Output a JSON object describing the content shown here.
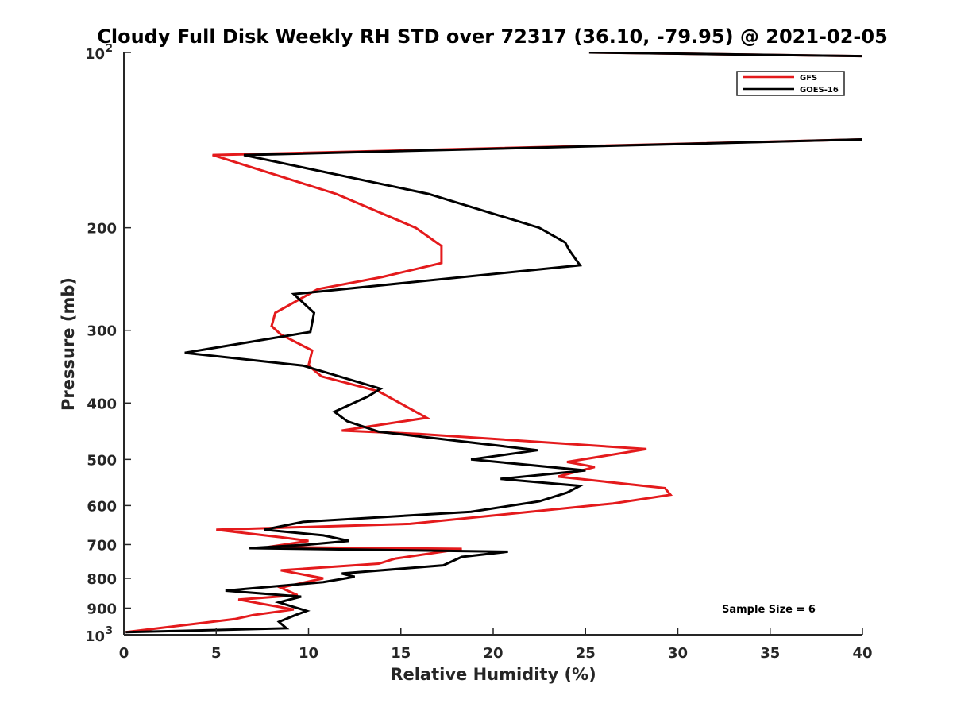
{
  "chart_data": {
    "type": "line",
    "title": "Cloudy Full Disk Weekly RH STD over 72317 (36.10, -79.95) @ 2021-02-05",
    "xlabel": "Relative Humidity (%)",
    "ylabel": "Pressure (mb)",
    "xlim": [
      0,
      40
    ],
    "ylim": [
      100,
      1000
    ],
    "y_scale": "log",
    "y_reversed": true,
    "grid": false,
    "legend_placement": "top-right",
    "xticks": [
      "0",
      "5",
      "10",
      "15",
      "20",
      "25",
      "30",
      "35",
      "40"
    ],
    "yticks": [
      {
        "value": 100,
        "base": "10",
        "exp": "2"
      },
      {
        "value": 200,
        "label": "200"
      },
      {
        "value": 300,
        "label": "300"
      },
      {
        "value": 400,
        "label": "400"
      },
      {
        "value": 500,
        "label": "500"
      },
      {
        "value": 600,
        "label": "600"
      },
      {
        "value": 700,
        "label": "700"
      },
      {
        "value": 800,
        "label": "800"
      },
      {
        "value": 900,
        "label": "900"
      },
      {
        "value": 1000,
        "base": "10",
        "exp": "3"
      }
    ],
    "annotation": "Sample Size = 6",
    "series": [
      {
        "name": "GFS",
        "color": "#e41a1c",
        "points": [
          [
            25.2,
            100
          ],
          [
            40.2,
            101.5
          ],
          [
            40.2,
            141
          ],
          [
            4.8,
            150
          ],
          [
            11.5,
            175
          ],
          [
            15.8,
            200
          ],
          [
            17.2,
            215
          ],
          [
            17.2,
            230
          ],
          [
            14.0,
            243
          ],
          [
            10.5,
            255
          ],
          [
            8.2,
            280
          ],
          [
            8.0,
            295
          ],
          [
            8.5,
            305
          ],
          [
            10.2,
            325
          ],
          [
            10.0,
            345
          ],
          [
            10.7,
            360
          ],
          [
            13.8,
            382
          ],
          [
            16.4,
            424
          ],
          [
            11.8,
            446
          ],
          [
            16.0,
            452
          ],
          [
            28.3,
            480
          ],
          [
            24.0,
            505
          ],
          [
            25.5,
            515
          ],
          [
            23.5,
            535
          ],
          [
            29.3,
            560
          ],
          [
            29.6,
            575
          ],
          [
            26.5,
            595
          ],
          [
            15.5,
            645
          ],
          [
            5.0,
            660
          ],
          [
            8.5,
            680
          ],
          [
            10.0,
            690
          ],
          [
            7.8,
            707
          ],
          [
            18.3,
            712
          ],
          [
            14.7,
            740
          ],
          [
            13.8,
            755
          ],
          [
            8.5,
            775
          ],
          [
            10.8,
            800
          ],
          [
            8.5,
            830
          ],
          [
            9.4,
            855
          ],
          [
            6.2,
            870
          ],
          [
            9.2,
            905
          ],
          [
            7.0,
            925
          ],
          [
            6.0,
            940
          ],
          [
            0.1,
            990
          ]
        ]
      },
      {
        "name": "GOES-16",
        "color": "#000000",
        "points": [
          [
            25.2,
            100
          ],
          [
            40.2,
            101.5
          ],
          [
            40.2,
            141
          ],
          [
            6.5,
            150
          ],
          [
            16.5,
            175
          ],
          [
            22.5,
            200
          ],
          [
            23.9,
            212
          ],
          [
            24.1,
            218
          ],
          [
            24.7,
            232
          ],
          [
            9.2,
            260
          ],
          [
            10.3,
            280
          ],
          [
            10.1,
            302
          ],
          [
            3.3,
            328
          ],
          [
            9.7,
            345
          ],
          [
            13.9,
            378
          ],
          [
            13.2,
            390
          ],
          [
            11.4,
            414
          ],
          [
            12.1,
            430
          ],
          [
            13.8,
            448
          ],
          [
            22.4,
            482
          ],
          [
            18.8,
            500
          ],
          [
            25.0,
            522
          ],
          [
            20.4,
            540
          ],
          [
            24.7,
            555
          ],
          [
            24.0,
            570
          ],
          [
            22.5,
            590
          ],
          [
            18.8,
            615
          ],
          [
            9.7,
            640
          ],
          [
            7.6,
            660
          ],
          [
            10.8,
            675
          ],
          [
            12.2,
            690
          ],
          [
            10.0,
            700
          ],
          [
            6.8,
            710
          ],
          [
            20.8,
            720
          ],
          [
            18.3,
            735
          ],
          [
            17.3,
            760
          ],
          [
            11.8,
            785
          ],
          [
            12.5,
            795
          ],
          [
            10.8,
            812
          ],
          [
            5.5,
            840
          ],
          [
            9.6,
            860
          ],
          [
            8.4,
            880
          ],
          [
            9.9,
            910
          ],
          [
            9.3,
            925
          ],
          [
            8.4,
            950
          ],
          [
            8.8,
            975
          ],
          [
            0.1,
            990
          ]
        ]
      }
    ]
  }
}
